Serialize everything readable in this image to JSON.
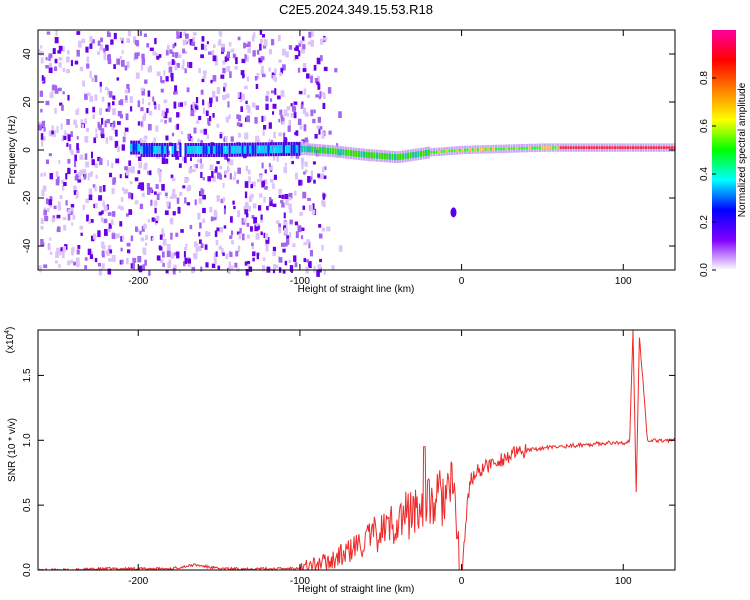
{
  "title": "C2E5.2024.349.15.53.R18",
  "chart_data": [
    {
      "type": "heatmap",
      "xlabel": "Height of straight line (km)",
      "ylabel": "Frequency (Hz)",
      "xlim": [
        -262,
        132
      ],
      "ylim": [
        -50,
        50
      ],
      "xticks": [
        -200,
        -100,
        0,
        100
      ],
      "yticks": [
        -40,
        -20,
        0,
        20,
        40
      ],
      "colorbar": {
        "label": "Normalized spectral amplitude",
        "range": [
          0,
          1
        ],
        "ticks": [
          "0.0",
          "0.2",
          "0.4",
          "0.6",
          "0.8"
        ],
        "colormap": [
          "#ffffff",
          "#8000ff",
          "#0000ff",
          "#00ffff",
          "#00ff00",
          "#ffff00",
          "#ff8000",
          "#ff0000",
          "#ff00a0"
        ]
      },
      "features": {
        "noise_region_x": [
          -262,
          -95
        ],
        "carrier_band": [
          {
            "x": -200,
            "y": 0
          },
          {
            "x": -150,
            "y": 0
          },
          {
            "x": -100,
            "y": 0.5
          },
          {
            "x": -80,
            "y": -0.5
          },
          {
            "x": -60,
            "y": -2
          },
          {
            "x": -40,
            "y": -3
          },
          {
            "x": -20,
            "y": -1
          },
          {
            "x": 0,
            "y": 0
          },
          {
            "x": 50,
            "y": 1
          },
          {
            "x": 100,
            "y": 1
          },
          {
            "x": 130,
            "y": 1
          }
        ],
        "spot": {
          "x": -5,
          "y": -26
        }
      }
    },
    {
      "type": "line",
      "xlabel": "Height of straight line (km)",
      "ylabel": "SNR (10 * v/v)",
      "yscale_label": "(x10",
      "yscale_exp": "4",
      "xlim": [
        -262,
        132
      ],
      "ylim": [
        0,
        1.85
      ],
      "xticks": [
        -200,
        -100,
        0,
        100
      ],
      "yticks": [
        "0.0",
        "0.5",
        "1.0",
        "1.5"
      ],
      "color": "#ee2b2b",
      "series": [
        {
          "x": [
            -262,
            -240,
            -220,
            -200,
            -180,
            -165,
            -150,
            -130,
            -110,
            -100,
            -90,
            -80,
            -70,
            -60,
            -50,
            -40,
            -30,
            -20,
            -10,
            -5,
            0,
            5,
            10,
            20,
            30,
            40,
            50,
            60,
            70,
            80,
            90,
            100,
            104,
            106,
            108,
            110,
            115,
            120,
            132
          ],
          "values": [
            0.0,
            0.0,
            0.01,
            0.01,
            0.01,
            0.04,
            0.01,
            0.01,
            0.01,
            0.02,
            0.04,
            0.08,
            0.14,
            0.22,
            0.3,
            0.38,
            0.45,
            0.5,
            0.58,
            0.6,
            0.0,
            0.68,
            0.76,
            0.83,
            0.88,
            0.92,
            0.94,
            0.95,
            0.96,
            0.97,
            0.98,
            0.98,
            0.99,
            1.85,
            0.6,
            1.8,
            1.0,
            1.0,
            1.0
          ]
        }
      ]
    }
  ]
}
